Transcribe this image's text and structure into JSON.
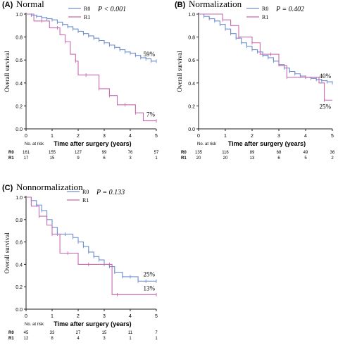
{
  "colors": {
    "r0": "#6f8fd0",
    "r1": "#c86ab0",
    "axis": "#222222"
  },
  "chart_data": [
    {
      "type": "line",
      "panel_label": "(A)",
      "title": "Normal",
      "pvalue": "P < 0.001",
      "xlabel": "Time after surgery (years)",
      "ylabel": "Overall survival",
      "xlim": [
        0,
        5
      ],
      "ylim": [
        0,
        1.0
      ],
      "xticks": [
        "0",
        "1",
        "2",
        "3",
        "4",
        "5"
      ],
      "yticks": [
        "0.0",
        "0.2",
        "0.4",
        "0.6",
        "0.8",
        "1.0"
      ],
      "series": [
        {
          "name": "R0",
          "color": "#6f8fd0",
          "end_label": "59%",
          "x": [
            0,
            0.2,
            0.4,
            0.6,
            0.8,
            1.0,
            1.2,
            1.4,
            1.6,
            1.8,
            2.0,
            2.2,
            2.4,
            2.6,
            2.8,
            3.0,
            3.2,
            3.4,
            3.6,
            3.8,
            4.0,
            4.2,
            4.4,
            4.6,
            4.8,
            5.0
          ],
          "y": [
            1.0,
            0.99,
            0.98,
            0.97,
            0.96,
            0.95,
            0.93,
            0.91,
            0.89,
            0.87,
            0.85,
            0.83,
            0.81,
            0.79,
            0.77,
            0.75,
            0.73,
            0.71,
            0.69,
            0.67,
            0.66,
            0.64,
            0.62,
            0.61,
            0.59,
            0.59
          ]
        },
        {
          "name": "R1",
          "color": "#c86ab0",
          "end_label": "7%",
          "x": [
            0,
            0.3,
            0.6,
            0.9,
            1.2,
            1.3,
            1.5,
            1.7,
            1.9,
            2.0,
            2.3,
            2.5,
            2.8,
            3.0,
            3.2,
            3.5,
            3.8,
            4.0,
            4.2,
            4.5,
            5.0
          ],
          "y": [
            1.0,
            0.94,
            0.94,
            0.88,
            0.88,
            0.82,
            0.76,
            0.65,
            0.59,
            0.47,
            0.47,
            0.47,
            0.35,
            0.35,
            0.29,
            0.21,
            0.21,
            0.21,
            0.14,
            0.07,
            0.07
          ]
        }
      ],
      "risk_table": {
        "title": "No. at risk",
        "rows": [
          {
            "label": "R0",
            "values": [
              "161",
              "155",
              "127",
              "99",
              "76",
              "57"
            ]
          },
          {
            "label": "R1",
            "values": [
              "17",
              "15",
              "9",
              "6",
              "3",
              "1"
            ]
          }
        ]
      }
    },
    {
      "type": "line",
      "panel_label": "(B)",
      "title": "Normalization",
      "pvalue": "P = 0.402",
      "xlabel": "Time after surgery (years)",
      "ylabel": "Overall survival",
      "xlim": [
        0,
        5
      ],
      "ylim": [
        0,
        1.0
      ],
      "xticks": [
        "0",
        "1",
        "2",
        "3",
        "4",
        "5"
      ],
      "yticks": [
        "0.0",
        "0.2",
        "0.4",
        "0.6",
        "0.8",
        "1.0"
      ],
      "series": [
        {
          "name": "R0",
          "color": "#6f8fd0",
          "end_label": "40%",
          "x": [
            0,
            0.2,
            0.4,
            0.6,
            0.8,
            1.0,
            1.2,
            1.4,
            1.6,
            1.8,
            2.0,
            2.2,
            2.4,
            2.6,
            2.8,
            3.0,
            3.2,
            3.4,
            3.6,
            3.8,
            4.0,
            4.2,
            4.4,
            4.6,
            4.8,
            5.0
          ],
          "y": [
            1.0,
            0.98,
            0.96,
            0.94,
            0.91,
            0.87,
            0.83,
            0.79,
            0.75,
            0.72,
            0.69,
            0.67,
            0.64,
            0.62,
            0.59,
            0.56,
            0.53,
            0.5,
            0.48,
            0.46,
            0.45,
            0.44,
            0.43,
            0.42,
            0.41,
            0.4
          ]
        },
        {
          "name": "R1",
          "color": "#c86ab0",
          "end_label": "25%",
          "x": [
            0,
            0.6,
            0.9,
            1.2,
            1.5,
            1.8,
            2.0,
            2.3,
            2.7,
            3.0,
            3.3,
            3.6,
            4.0,
            4.5,
            4.7,
            5.0
          ],
          "y": [
            1.0,
            1.0,
            0.95,
            0.9,
            0.8,
            0.8,
            0.75,
            0.65,
            0.65,
            0.55,
            0.45,
            0.45,
            0.45,
            0.4,
            0.25,
            0.25
          ]
        }
      ],
      "risk_table": {
        "title": "No. at risk",
        "rows": [
          {
            "label": "R0",
            "values": [
              "135",
              "116",
              "89",
              "68",
              "49",
              "36"
            ]
          },
          {
            "label": "R1",
            "values": [
              "20",
              "20",
              "13",
              "6",
              "5",
              "2"
            ]
          }
        ]
      }
    },
    {
      "type": "line",
      "panel_label": "(C)",
      "title": "Nonnormalization",
      "pvalue": "P = 0.133",
      "xlabel": "Time after surgery (years)",
      "ylabel": "Overall survival",
      "xlim": [
        0,
        5
      ],
      "ylim": [
        0,
        1.0
      ],
      "xticks": [
        "0",
        "1",
        "2",
        "3",
        "4",
        "5"
      ],
      "yticks": [
        "0.0",
        "0.2",
        "0.4",
        "0.6",
        "0.8",
        "1.0"
      ],
      "series": [
        {
          "name": "R0",
          "color": "#6f8fd0",
          "end_label": "25%",
          "x": [
            0,
            0.2,
            0.4,
            0.6,
            0.8,
            1.0,
            1.2,
            1.5,
            1.8,
            2.0,
            2.2,
            2.4,
            2.6,
            2.8,
            3.0,
            3.2,
            3.4,
            3.7,
            4.0,
            4.3,
            4.6,
            5.0
          ],
          "y": [
            1.0,
            0.97,
            0.93,
            0.88,
            0.8,
            0.73,
            0.67,
            0.67,
            0.64,
            0.6,
            0.56,
            0.51,
            0.47,
            0.44,
            0.4,
            0.38,
            0.33,
            0.29,
            0.29,
            0.25,
            0.25,
            0.25
          ]
        },
        {
          "name": "R1",
          "color": "#c86ab0",
          "end_label": "13%",
          "x": [
            0,
            0.2,
            0.5,
            0.8,
            1.0,
            1.3,
            1.6,
            2.0,
            2.4,
            2.9,
            3.2,
            3.3,
            3.5,
            4.0,
            5.0
          ],
          "y": [
            1.0,
            0.92,
            0.83,
            0.75,
            0.67,
            0.5,
            0.5,
            0.4,
            0.4,
            0.4,
            0.4,
            0.13,
            0.13,
            0.13,
            0.13
          ]
        }
      ],
      "risk_table": {
        "title": "No. at risk",
        "rows": [
          {
            "label": "R0",
            "values": [
              "45",
              "33",
              "27",
              "15",
              "11",
              "7"
            ]
          },
          {
            "label": "R1",
            "values": [
              "12",
              "8",
              "4",
              "3",
              "1",
              "1"
            ]
          }
        ]
      }
    }
  ]
}
